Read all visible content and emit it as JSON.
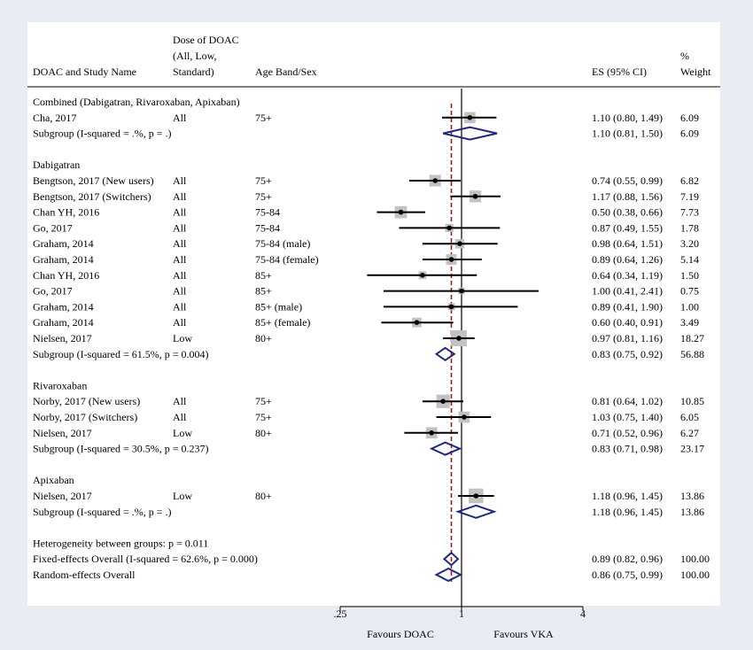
{
  "chart_data": {
    "type": "forest",
    "x_scale": "log",
    "xlim": [
      0.25,
      4
    ],
    "x_ticks": [
      {
        "value": 0.25,
        "label": ".25"
      },
      {
        "value": 1,
        "label": "1"
      },
      {
        "value": 4,
        "label": "4"
      }
    ],
    "null_value": 1,
    "overall_reference_value": 0.89,
    "favours_left": "Favours DOAC",
    "favours_right": "Favours VKA",
    "headers": {
      "study": "DOAC and Study Name",
      "dose": [
        "Dose of DOAC",
        "(All, Low,",
        "Standard)"
      ],
      "age": "Age Band/Sex",
      "es": "ES (95% CI)",
      "weight": [
        "%",
        "Weight"
      ]
    },
    "rows": [
      {
        "kind": "group",
        "label": "Combined (Dabigatran, Rivaroxaban, Apixaban)"
      },
      {
        "kind": "study",
        "study": "Cha, 2017",
        "dose": "All",
        "age": "75+",
        "es": 1.1,
        "lo": 0.8,
        "hi": 1.49,
        "es_text": "1.10 (0.80, 1.49)",
        "weight": "6.09"
      },
      {
        "kind": "subgroup",
        "study": "Subgroup (I-squared = .%, p = .)",
        "es": 1.1,
        "lo": 0.81,
        "hi": 1.5,
        "es_text": "1.10 (0.81, 1.50)",
        "weight": "6.09"
      },
      {
        "kind": "blank"
      },
      {
        "kind": "group",
        "label": "Dabigatran"
      },
      {
        "kind": "study",
        "study": "Bengtson, 2017 (New users)",
        "dose": "All",
        "age": "75+",
        "es": 0.74,
        "lo": 0.55,
        "hi": 0.99,
        "es_text": "0.74 (0.55, 0.99)",
        "weight": "6.82"
      },
      {
        "kind": "study",
        "study": "Bengtson, 2017 (Switchers)",
        "dose": "All",
        "age": "75+",
        "es": 1.17,
        "lo": 0.88,
        "hi": 1.56,
        "es_text": "1.17 (0.88, 1.56)",
        "weight": "7.19"
      },
      {
        "kind": "study",
        "study": "Chan YH, 2016",
        "dose": "All",
        "age": "75-84",
        "es": 0.5,
        "lo": 0.38,
        "hi": 0.66,
        "es_text": "0.50 (0.38, 0.66)",
        "weight": "7.73"
      },
      {
        "kind": "study",
        "study": "Go, 2017",
        "dose": "All",
        "age": "75-84",
        "es": 0.87,
        "lo": 0.49,
        "hi": 1.55,
        "es_text": "0.87 (0.49, 1.55)",
        "weight": "1.78"
      },
      {
        "kind": "study",
        "study": "Graham, 2014",
        "dose": "All",
        "age": "75-84 (male)",
        "es": 0.98,
        "lo": 0.64,
        "hi": 1.51,
        "es_text": "0.98 (0.64, 1.51)",
        "weight": "3.20"
      },
      {
        "kind": "study",
        "study": "Graham, 2014",
        "dose": "All",
        "age": "75-84 (female)",
        "es": 0.89,
        "lo": 0.64,
        "hi": 1.26,
        "es_text": "0.89 (0.64, 1.26)",
        "weight": "5.14"
      },
      {
        "kind": "study",
        "study": "Chan YH, 2016",
        "dose": "All",
        "age": "85+",
        "es": 0.64,
        "lo": 0.34,
        "hi": 1.19,
        "es_text": "0.64 (0.34, 1.19)",
        "weight": "1.50"
      },
      {
        "kind": "study",
        "study": "Go, 2017",
        "dose": "All",
        "age": "85+",
        "es": 1.0,
        "lo": 0.41,
        "hi": 2.41,
        "es_text": "1.00 (0.41, 2.41)",
        "weight": "0.75"
      },
      {
        "kind": "study",
        "study": "Graham, 2014",
        "dose": "All",
        "age": "85+ (male)",
        "es": 0.89,
        "lo": 0.41,
        "hi": 1.9,
        "es_text": "0.89 (0.41, 1.90)",
        "weight": "1.00"
      },
      {
        "kind": "study",
        "study": "Graham, 2014",
        "dose": "All",
        "age": "85+ (female)",
        "es": 0.6,
        "lo": 0.4,
        "hi": 0.91,
        "es_text": "0.60 (0.40, 0.91)",
        "weight": "3.49"
      },
      {
        "kind": "study",
        "study": "Nielsen, 2017",
        "dose": "Low",
        "age": "80+",
        "es": 0.97,
        "lo": 0.81,
        "hi": 1.16,
        "es_text": "0.97 (0.81, 1.16)",
        "weight": "18.27"
      },
      {
        "kind": "subgroup",
        "study": "Subgroup (I-squared = 61.5%, p = 0.004)",
        "es": 0.83,
        "lo": 0.75,
        "hi": 0.92,
        "es_text": "0.83 (0.75, 0.92)",
        "weight": "56.88"
      },
      {
        "kind": "blank"
      },
      {
        "kind": "group",
        "label": "Rivaroxaban"
      },
      {
        "kind": "study",
        "study": "Norby, 2017 (New users)",
        "dose": "All",
        "age": "75+",
        "es": 0.81,
        "lo": 0.64,
        "hi": 1.02,
        "es_text": "0.81 (0.64, 1.02)",
        "weight": "10.85"
      },
      {
        "kind": "study",
        "study": "Norby, 2017 (Switchers)",
        "dose": "All",
        "age": "75+",
        "es": 1.03,
        "lo": 0.75,
        "hi": 1.4,
        "es_text": "1.03 (0.75, 1.40)",
        "weight": "6.05"
      },
      {
        "kind": "study",
        "study": "Nielsen, 2017",
        "dose": "Low",
        "age": "80+",
        "es": 0.71,
        "lo": 0.52,
        "hi": 0.96,
        "es_text": "0.71 (0.52, 0.96)",
        "weight": "6.27"
      },
      {
        "kind": "subgroup",
        "study": "Subgroup (I-squared = 30.5%, p = 0.237)",
        "es": 0.83,
        "lo": 0.71,
        "hi": 0.98,
        "es_text": "0.83 (0.71, 0.98)",
        "weight": "23.17"
      },
      {
        "kind": "blank"
      },
      {
        "kind": "group",
        "label": "Apixaban"
      },
      {
        "kind": "study",
        "study": "Nielsen, 2017",
        "dose": "Low",
        "age": "80+",
        "es": 1.18,
        "lo": 0.96,
        "hi": 1.45,
        "es_text": "1.18 (0.96, 1.45)",
        "weight": "13.86"
      },
      {
        "kind": "subgroup",
        "study": "Subgroup (I-squared = .%, p = .)",
        "es": 1.18,
        "lo": 0.96,
        "hi": 1.45,
        "es_text": "1.18 (0.96, 1.45)",
        "weight": "13.86"
      },
      {
        "kind": "blank"
      },
      {
        "kind": "text",
        "study": "Heterogeneity between groups: p = 0.011"
      },
      {
        "kind": "overall",
        "study": "Fixed-effects Overall (I-squared = 62.6%, p = 0.000)",
        "es": 0.89,
        "lo": 0.82,
        "hi": 0.96,
        "es_text": "0.89 (0.82, 0.96)",
        "weight": "100.00"
      },
      {
        "kind": "overall",
        "study": "Random-effects Overall",
        "es": 0.86,
        "lo": 0.75,
        "hi": 0.99,
        "es_text": "0.86 (0.75, 0.99)",
        "weight": "100.00"
      }
    ]
  },
  "colors": {
    "background": "#e9edf3",
    "panel": "#ffffff",
    "diamond": "#1f2a7a",
    "box": "#c2c2c2",
    "reference_line": "#9c1c1c",
    "marker": "#000000"
  }
}
